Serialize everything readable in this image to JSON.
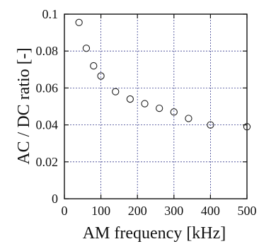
{
  "chart_data": {
    "type": "scatter",
    "title": "",
    "xlabel": "AM frequency [kHz]",
    "ylabel": "AC / DC ratio [-]",
    "xlim": [
      0,
      500
    ],
    "ylim": [
      0,
      0.1
    ],
    "x_ticks": [
      0,
      100,
      200,
      300,
      400,
      500
    ],
    "y_ticks": [
      0,
      0.02,
      0.04,
      0.06,
      0.08,
      0.1
    ],
    "x_tick_labels": [
      "0",
      "100",
      "200",
      "300",
      "400",
      "500"
    ],
    "y_tick_labels": [
      "0",
      "0.02",
      "0.04",
      "0.06",
      "0.08",
      "0.1"
    ],
    "grid": true,
    "series": [
      {
        "x": [
          40,
          60,
          80,
          100,
          140,
          180,
          220,
          260,
          300,
          340,
          400,
          500
        ],
        "y": [
          0.0955,
          0.0815,
          0.072,
          0.0665,
          0.058,
          0.054,
          0.0515,
          0.049,
          0.047,
          0.0435,
          0.04,
          0.039
        ]
      }
    ],
    "colors": {
      "marker": "#222222",
      "grid": "#3a3f8f",
      "frame": "#111111"
    }
  }
}
